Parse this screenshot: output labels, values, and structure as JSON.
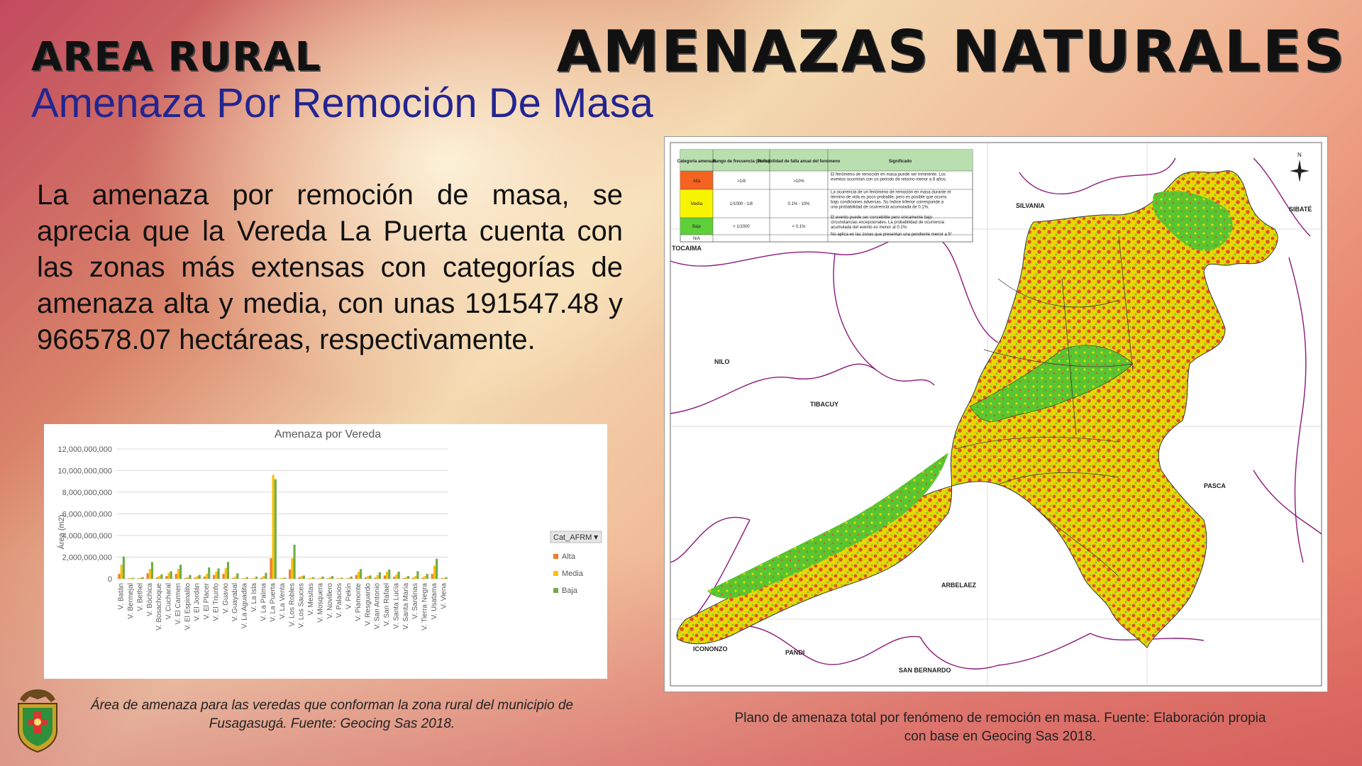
{
  "header": {
    "area": "AREA RURAL",
    "section": "AMENAZAS NATURALES",
    "subtitle": "Amenaza Por Remoción De Masa"
  },
  "body_text": "La amenaza por remoción de masa, se aprecia que la Vereda La Puerta cuenta con las zonas más extensas con categorías de amenaza alta y media, con unas 191547.48 y 966578.07 hectáreas, respectivamente.",
  "chart_caption": "Área de amenaza para las veredas que conforman la zona rural del municipio de Fusagasugá.  Fuente: Geocing Sas 2018.",
  "map_caption": "Plano de amenaza total por fenómeno de remoción en masa. Fuente: Elaboración propia con base en Geocing Sas 2018.",
  "colors": {
    "alta": "#ed7d31",
    "media": "#ffc000",
    "baja": "#70ad47",
    "subtitle": "#22258f"
  },
  "chart_data": {
    "type": "bar",
    "title": "Amenaza por Vereda",
    "ylabel": "Área  (m2)",
    "ylim": [
      0,
      12000000000
    ],
    "yticks": [
      "0",
      "2,000,000,000",
      "4,000,000,000",
      "6,000,000,000",
      "8,000,000,000",
      "10,000,000,000",
      "12,000,000,000"
    ],
    "ytick_values": [
      0,
      2000000000,
      4000000000,
      6000000000,
      8000000000,
      10000000000,
      12000000000
    ],
    "legend_title": "Cat_AFRM",
    "legend_position": "right",
    "categories": [
      "V. Batán",
      "V. Bermejal",
      "V. Bethel",
      "V. Bóchica",
      "V. Bosachoque",
      "V. Cucharal",
      "V. El Carmen",
      "V. El Espinalito",
      "V. El Jordán",
      "V. El Placer",
      "V. El Triunfo",
      "V. Guavio",
      "V. Guayabal",
      "V. La Aguadita",
      "V. La Isla",
      "V. La Palma",
      "V. La Puerta",
      "V. La Venta",
      "V. Los Robles",
      "V. Los Sauces",
      "V. Mesitas",
      "V. Mosquera",
      "V. Novillero",
      "V. Palacios",
      "V. Pekín",
      "V. Piamonte",
      "V. Resguardo",
      "V. San Antonio",
      "V. San Rafael",
      "V. Santa Lucía",
      "V. Santa María",
      "V. Sardinas",
      "V. Tierra Negra",
      "V. Usatama",
      "V. Viena"
    ],
    "series": [
      {
        "name": "Alta",
        "values": [
          450000000,
          40000000,
          40000000,
          500000000,
          120000000,
          250000000,
          450000000,
          80000000,
          100000000,
          200000000,
          350000000,
          450000000,
          80000000,
          30000000,
          40000000,
          100000000,
          1900000000,
          40000000,
          850000000,
          130000000,
          40000000,
          40000000,
          60000000,
          30000000,
          40000000,
          350000000,
          130000000,
          100000000,
          300000000,
          200000000,
          60000000,
          100000000,
          100000000,
          450000000,
          40000000
        ]
      },
      {
        "name": "Media",
        "values": [
          1300000000,
          80000000,
          80000000,
          900000000,
          250000000,
          550000000,
          900000000,
          150000000,
          250000000,
          450000000,
          650000000,
          1000000000,
          200000000,
          60000000,
          80000000,
          250000000,
          9600000000,
          80000000,
          1900000000,
          250000000,
          100000000,
          100000000,
          150000000,
          60000000,
          100000000,
          650000000,
          250000000,
          350000000,
          650000000,
          400000000,
          150000000,
          250000000,
          250000000,
          1200000000,
          80000000
        ]
      },
      {
        "name": "Baja",
        "values": [
          2050000000,
          80000000,
          150000000,
          1550000000,
          400000000,
          700000000,
          1300000000,
          350000000,
          350000000,
          1050000000,
          950000000,
          1550000000,
          500000000,
          150000000,
          200000000,
          550000000,
          9200000000,
          100000000,
          3150000000,
          300000000,
          150000000,
          200000000,
          250000000,
          100000000,
          200000000,
          900000000,
          300000000,
          600000000,
          850000000,
          650000000,
          250000000,
          700000000,
          450000000,
          1850000000,
          150000000
        ]
      }
    ]
  },
  "map": {
    "labels": [
      "SILVANIA",
      "SIBATÉ",
      "TOCAIMA",
      "NILO",
      "TIBACUY",
      "PASCA",
      "ARBELAEZ",
      "ICONONZO",
      "PANDI",
      "SAN BERNARDO"
    ],
    "table": {
      "headers": [
        "Categoría amenaza",
        "Rango de frecuencia (1/año)",
        "Probabilidad de falla anual del fenómeno",
        "Significado"
      ],
      "rows": [
        {
          "cat": "Alta",
          "freq": ">1/8",
          "prob": ">10%",
          "desc": "El fenómeno de remoción en masa puede ser inminente. Los eventos ocurrirían con un periodo de retorno menor a 8 años."
        },
        {
          "cat": "Media",
          "freq": "1/1000 - 1/8",
          "prob": "0.1% - 10%",
          "desc": "La ocurrencia de un fenómeno de remoción en masa durante el término de vida es poco probable, pero es posible que ocurra bajo condiciones adversas. Su índice inferior corresponde a una probabilidad de ocurrencia acumulada de 0.1%."
        },
        {
          "cat": "Baja",
          "freq": "< 1/1000",
          "prob": "< 0.1%",
          "desc": "El evento puede ser concebible pero únicamente bajo circunstancias excepcionales. La probabilidad de ocurrencia acumulada del evento es menor al 0.1%."
        },
        {
          "cat": "N/A",
          "freq": "",
          "prob": "",
          "desc": "No aplica en las zonas que presentan una pendiente menor a 5°"
        }
      ]
    }
  }
}
